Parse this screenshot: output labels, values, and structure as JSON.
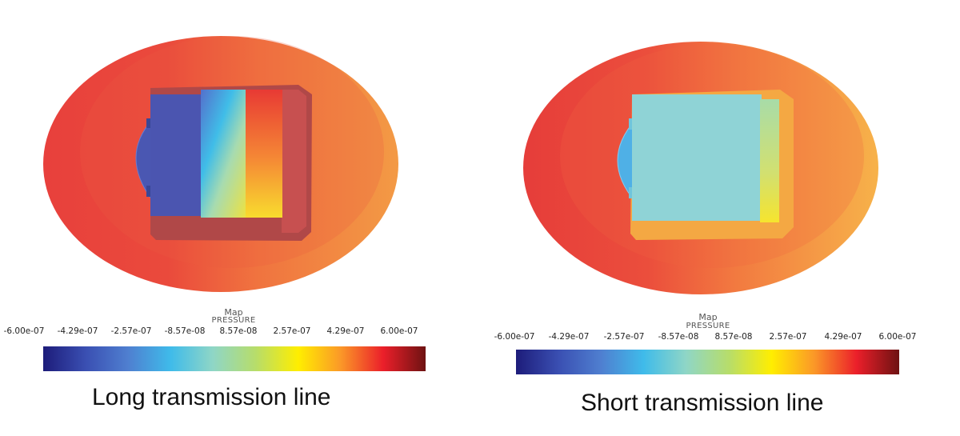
{
  "legend_title": "Map",
  "legend_variable": "PRESSURE",
  "colorbar_ticks": [
    "-6.00e-07",
    "-4.29e-07",
    "-2.57e-07",
    "-8.57e-08",
    "8.57e-08",
    "2.57e-07",
    "4.29e-07",
    "6.00e-07"
  ],
  "colormap": [
    "#1d1c7a",
    "#3a4fb2",
    "#4f7fd0",
    "#3fbbea",
    "#8fd6c6",
    "#b7dd6a",
    "#ffee00",
    "#fb9828",
    "#eb1f2a",
    "#6e1212"
  ],
  "panels": [
    {
      "caption": "Long transmission line"
    },
    {
      "caption": "Short transmission line"
    }
  ]
}
